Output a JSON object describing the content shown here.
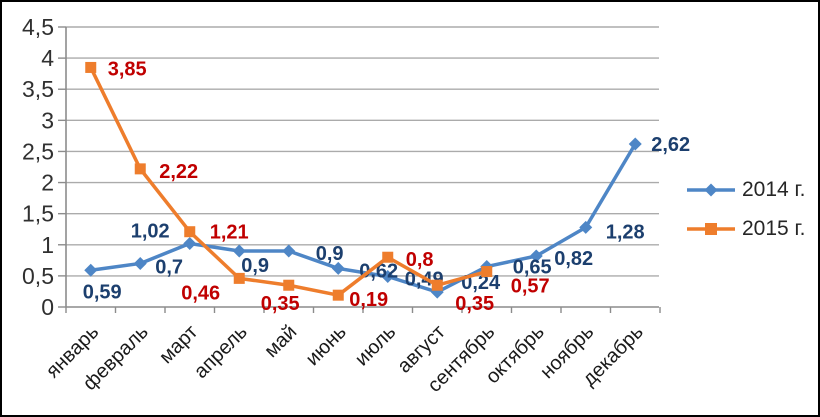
{
  "chart_data": {
    "type": "line",
    "title": "",
    "xlabel": "",
    "ylabel": "",
    "ylim": [
      0,
      4.5
    ],
    "y_step": 0.5,
    "grid": true,
    "legend_position": "right",
    "y_ticks": [
      "0",
      "0,5",
      "1",
      "1,5",
      "2",
      "2,5",
      "3",
      "3,5",
      "4",
      "4,5"
    ],
    "categories": [
      "январь",
      "февраль",
      "март",
      "апрель",
      "май",
      "июнь",
      "июль",
      "август",
      "сентябрь",
      "октябрь",
      "ноябрь",
      "декабрь"
    ],
    "series": [
      {
        "name": "2014 г.",
        "color": "#4e86c6",
        "marker": "diamond",
        "label_color": "#1c3f6e",
        "values": [
          0.59,
          0.7,
          1.02,
          0.9,
          0.9,
          0.62,
          0.49,
          0.24,
          0.65,
          0.82,
          1.28,
          2.62
        ],
        "labels": [
          "0,59",
          "0,7",
          "1,02",
          "0,9",
          "0,9",
          "0,62",
          "0,49",
          "0,24",
          "0,65",
          "0,82",
          "1,28",
          "2,62"
        ],
        "label_offsets": [
          [
            -8,
            21
          ],
          [
            15,
            3
          ],
          [
            -59,
            -13
          ],
          [
            2,
            14
          ],
          [
            27,
            2
          ],
          [
            21,
            2
          ],
          [
            17,
            2
          ],
          [
            24,
            -10
          ],
          [
            26,
            0
          ],
          [
            18,
            2
          ],
          [
            20,
            4
          ],
          [
            16,
            0
          ]
        ]
      },
      {
        "name": "2015 г.",
        "color": "#ee7d2c",
        "marker": "square",
        "label_color": "#c00000",
        "values": [
          3.85,
          2.22,
          1.21,
          0.46,
          0.35,
          0.19,
          0.8,
          0.35,
          0.57
        ],
        "labels": [
          "3,85",
          "2,22",
          "1,21",
          "0,46",
          "0,35",
          "0,19",
          "0,8",
          "0,35",
          "0,57"
        ],
        "label_offsets": [
          [
            17,
            1
          ],
          [
            19,
            2
          ],
          [
            20,
            0
          ],
          [
            -58,
            14
          ],
          [
            -28,
            18
          ],
          [
            11,
            4
          ],
          [
            18,
            2
          ],
          [
            18,
            18
          ],
          [
            24,
            14
          ]
        ]
      }
    ],
    "axis_color": "#8c8c8c",
    "grid_color": "#ababab",
    "tick_label_color": "#303030"
  },
  "legend": {
    "items": [
      {
        "label": "2014 г."
      },
      {
        "label": "2015 г."
      }
    ]
  }
}
